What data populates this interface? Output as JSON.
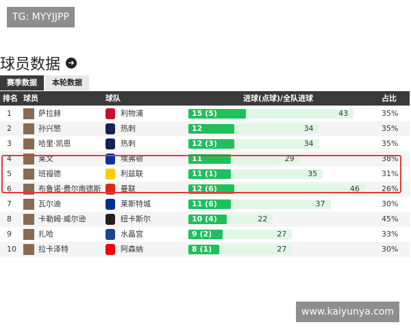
{
  "watermark_top": "TG: MYYJJPP",
  "header": {
    "title": "球员数据"
  },
  "tabs": [
    "赛季数据",
    "本轮数据"
  ],
  "table": {
    "columns": [
      "排名",
      "球员",
      "球队",
      "进球(点球)/全队进球",
      "占比"
    ],
    "rows": [
      {
        "rank": 1,
        "player": "萨拉赫",
        "team": "利物浦",
        "goals": {
          "value": 15,
          "label": "15 (5)"
        },
        "team_goals": 43,
        "share": "35%"
      },
      {
        "rank": 2,
        "player": "孙兴慜",
        "team": "热刺",
        "goals": {
          "value": 12,
          "label": "12"
        },
        "team_goals": 34,
        "share": "35%"
      },
      {
        "rank": 3,
        "player": "哈里·凯恩",
        "team": "热刺",
        "goals": {
          "value": 12,
          "label": "12 (3)"
        },
        "team_goals": 34,
        "share": "35%"
      },
      {
        "rank": 4,
        "player": "莱文",
        "team": "埃弗顿",
        "goals": {
          "value": 11,
          "label": "11"
        },
        "team_goals": 29,
        "share": "38%"
      },
      {
        "rank": 5,
        "player": "班福德",
        "team": "利兹联",
        "goals": {
          "value": 11,
          "label": "11 (1)"
        },
        "team_goals": 35,
        "share": "31%"
      },
      {
        "rank": 6,
        "player": "布鲁诺·费尔南德斯",
        "team": "曼联",
        "goals": {
          "value": 12,
          "label": "12 (6)"
        },
        "team_goals": 46,
        "share": "26%"
      },
      {
        "rank": 7,
        "player": "瓦尔迪",
        "team": "莱斯特城",
        "goals": {
          "value": 11,
          "label": "11 (6)"
        },
        "team_goals": 37,
        "share": "30%"
      },
      {
        "rank": 8,
        "player": "卡勒姆·威尔逊",
        "team": "纽卡斯尔",
        "goals": {
          "value": 10,
          "label": "10 (4)"
        },
        "team_goals": 22,
        "share": "45%"
      },
      {
        "rank": 9,
        "player": "扎哈",
        "team": "水晶宫",
        "goals": {
          "value": 9,
          "label": "9 (2)"
        },
        "team_goals": 27,
        "share": "33%"
      },
      {
        "rank": 10,
        "player": "拉卡泽特",
        "team": "阿森纳",
        "goals": {
          "value": 8,
          "label": "8 (1)"
        },
        "team_goals": 27,
        "share": "30%"
      }
    ]
  },
  "watermark_bottom": "www.kaiyunya.com"
}
